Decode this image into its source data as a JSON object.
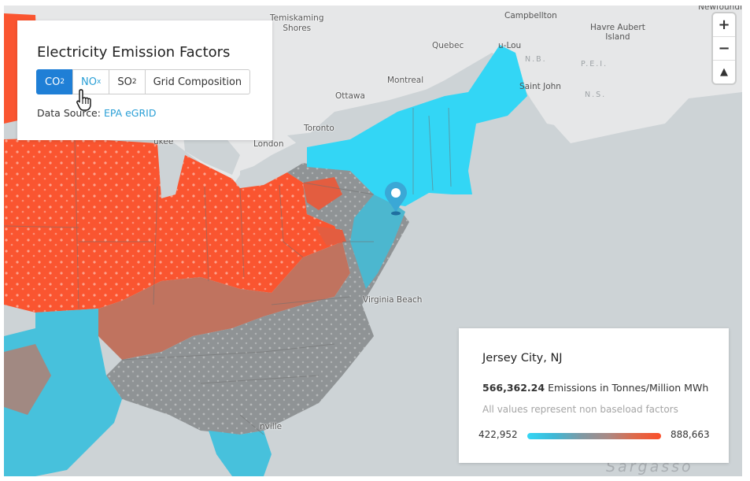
{
  "panel": {
    "title": "Electricity Emission Factors",
    "buttons": [
      {
        "main": "CO",
        "sub": "2",
        "active": true
      },
      {
        "main": "NO",
        "sub": "x",
        "active": false
      },
      {
        "main": "SO",
        "sub": "2",
        "active": false
      },
      {
        "main": "Grid Composition",
        "sub": "",
        "active": false
      }
    ],
    "source_label": "Data Source:",
    "source_link": "EPA eGRID"
  },
  "info": {
    "city": "Jersey City, NJ",
    "value": "566,362.24",
    "unit": "Emissions in Tonnes/Million MWh",
    "note": "All values represent non baseload factors",
    "min": "422,952",
    "max": "888,663"
  },
  "zoom": {
    "in": "+",
    "out": "−",
    "reset": "▲"
  },
  "colors": {
    "high": "#fb4f2a",
    "mid": "#8e9294",
    "low": "#33d6f5",
    "accent": "#1f7fd6"
  },
  "map_labels": {
    "temiskaming": "Temiskaming\nShores",
    "campbellton": "Campbellton",
    "havre": "Havre Aubert\nIsland",
    "quebec": "Quebec",
    "rimouski": "Saint John",
    "nb": "N.B.",
    "pei": "P.E.I.",
    "ns": "N.S.",
    "montreal": "Montreal",
    "ottawa": "Ottawa",
    "toronto": "Toronto",
    "london": "London",
    "milwaukee": "ukee",
    "virginia_beach": "Virginia Beach",
    "jacksonville": "nville",
    "sea": "Sargasso",
    "newfoundland": "Newfoundland",
    "du": "u-Lou"
  }
}
